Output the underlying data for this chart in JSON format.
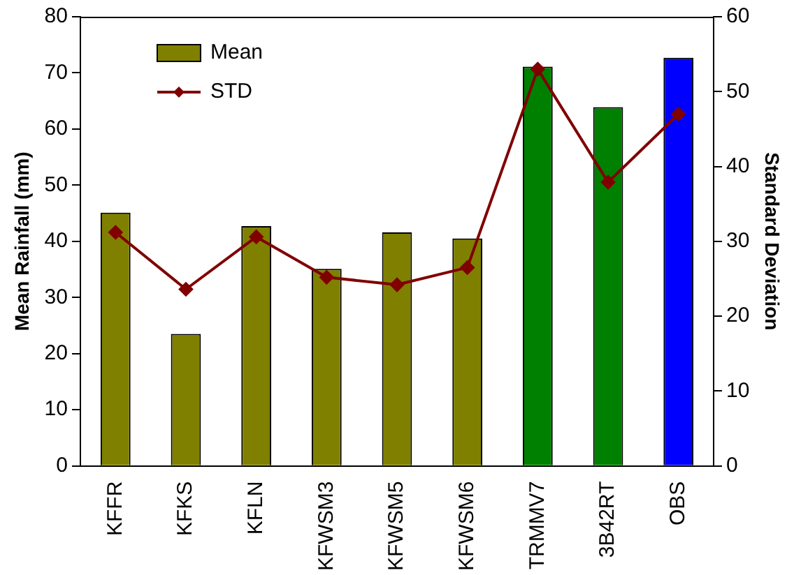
{
  "chart_data": {
    "type": "bar",
    "categories": [
      "KFFR",
      "KFKS",
      "KFLN",
      "KFWSM3",
      "KFWSM5",
      "KFWSM6",
      "TRMMV7",
      "3B42RT",
      "OBS"
    ],
    "ylabel": "Mean Rainfall (mm)",
    "y2label": "Standard Deviation",
    "ylim": [
      0,
      80
    ],
    "yticks": [
      0,
      10,
      20,
      30,
      40,
      50,
      60,
      70,
      80
    ],
    "y2lim": [
      0,
      60
    ],
    "y2ticks": [
      0,
      10,
      20,
      30,
      40,
      50,
      60
    ],
    "series": [
      {
        "name": "Mean",
        "color": "#808000",
        "colors": [
          "#808000",
          "#808000",
          "#808000",
          "#808000",
          "#808000",
          "#808000",
          "#008000",
          "#008000",
          "#0000ff"
        ],
        "values": [
          45.1,
          23.5,
          42.7,
          35.1,
          41.6,
          40.5,
          71.1,
          63.9,
          72.7
        ]
      },
      {
        "name": "STD",
        "type": "line",
        "axis": "y2",
        "color": "#800000",
        "marker": "diamond",
        "values": [
          31.2,
          23.6,
          30.6,
          25.2,
          24.2,
          26.5,
          53.0,
          37.9,
          47.0
        ]
      }
    ],
    "legend": "top left",
    "grid": false
  }
}
